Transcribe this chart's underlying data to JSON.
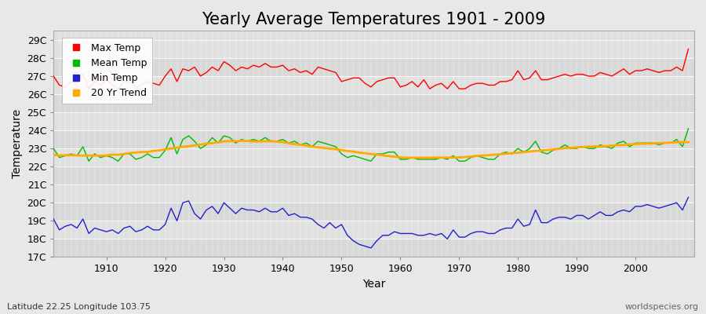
{
  "title": "Yearly Average Temperatures 1901 - 2009",
  "xlabel": "Year",
  "ylabel": "Temperature",
  "lat_lon_label": "Latitude 22.25 Longitude 103.75",
  "credit": "worldspecies.org",
  "years": [
    1901,
    1902,
    1903,
    1904,
    1905,
    1906,
    1907,
    1908,
    1909,
    1910,
    1911,
    1912,
    1913,
    1914,
    1915,
    1916,
    1917,
    1918,
    1919,
    1920,
    1921,
    1922,
    1923,
    1924,
    1925,
    1926,
    1927,
    1928,
    1929,
    1930,
    1931,
    1932,
    1933,
    1934,
    1935,
    1936,
    1937,
    1938,
    1939,
    1940,
    1941,
    1942,
    1943,
    1944,
    1945,
    1946,
    1947,
    1948,
    1949,
    1950,
    1951,
    1952,
    1953,
    1954,
    1955,
    1956,
    1957,
    1958,
    1959,
    1960,
    1961,
    1962,
    1963,
    1964,
    1965,
    1966,
    1967,
    1968,
    1969,
    1970,
    1971,
    1972,
    1973,
    1974,
    1975,
    1976,
    1977,
    1978,
    1979,
    1980,
    1981,
    1982,
    1983,
    1984,
    1985,
    1986,
    1987,
    1988,
    1989,
    1990,
    1991,
    1992,
    1993,
    1994,
    1995,
    1996,
    1997,
    1998,
    1999,
    2000,
    2001,
    2002,
    2003,
    2004,
    2005,
    2006,
    2007,
    2008,
    2009
  ],
  "max_temp": [
    27.0,
    26.5,
    26.4,
    26.7,
    26.6,
    27.1,
    26.3,
    26.7,
    26.5,
    26.8,
    26.5,
    26.3,
    26.7,
    26.7,
    26.4,
    26.5,
    26.7,
    26.6,
    26.5,
    27.0,
    27.4,
    26.7,
    27.4,
    27.3,
    27.5,
    27.0,
    27.2,
    27.5,
    27.3,
    27.8,
    27.6,
    27.3,
    27.5,
    27.4,
    27.6,
    27.5,
    27.7,
    27.5,
    27.5,
    27.6,
    27.3,
    27.4,
    27.2,
    27.3,
    27.1,
    27.5,
    27.4,
    27.3,
    27.2,
    26.7,
    26.8,
    26.9,
    26.9,
    26.6,
    26.4,
    26.7,
    26.8,
    26.9,
    26.9,
    26.4,
    26.5,
    26.7,
    26.4,
    26.8,
    26.3,
    26.5,
    26.6,
    26.3,
    26.7,
    26.3,
    26.3,
    26.5,
    26.6,
    26.6,
    26.5,
    26.5,
    26.7,
    26.7,
    26.8,
    27.3,
    26.8,
    26.9,
    27.3,
    26.8,
    26.8,
    26.9,
    27.0,
    27.1,
    27.0,
    27.1,
    27.1,
    27.0,
    27.0,
    27.2,
    27.1,
    27.0,
    27.2,
    27.4,
    27.1,
    27.3,
    27.3,
    27.4,
    27.3,
    27.2,
    27.3,
    27.3,
    27.5,
    27.3,
    28.5
  ],
  "mean_temp": [
    23.0,
    22.5,
    22.6,
    22.7,
    22.6,
    23.1,
    22.3,
    22.7,
    22.5,
    22.6,
    22.5,
    22.3,
    22.7,
    22.7,
    22.4,
    22.5,
    22.7,
    22.5,
    22.5,
    22.9,
    23.6,
    22.7,
    23.5,
    23.7,
    23.4,
    23.0,
    23.2,
    23.6,
    23.3,
    23.7,
    23.6,
    23.3,
    23.5,
    23.4,
    23.5,
    23.4,
    23.6,
    23.4,
    23.4,
    23.5,
    23.3,
    23.4,
    23.2,
    23.3,
    23.1,
    23.4,
    23.3,
    23.2,
    23.1,
    22.7,
    22.5,
    22.6,
    22.5,
    22.4,
    22.3,
    22.7,
    22.7,
    22.8,
    22.8,
    22.4,
    22.4,
    22.5,
    22.4,
    22.4,
    22.4,
    22.4,
    22.5,
    22.4,
    22.6,
    22.3,
    22.3,
    22.5,
    22.6,
    22.5,
    22.4,
    22.4,
    22.7,
    22.8,
    22.7,
    23.0,
    22.8,
    23.0,
    23.4,
    22.8,
    22.7,
    22.9,
    23.0,
    23.2,
    23.0,
    23.0,
    23.1,
    23.0,
    23.0,
    23.2,
    23.1,
    23.0,
    23.3,
    23.4,
    23.1,
    23.3,
    23.3,
    23.3,
    23.3,
    23.2,
    23.3,
    23.3,
    23.5,
    23.1,
    24.1
  ],
  "min_temp": [
    19.1,
    18.5,
    18.7,
    18.8,
    18.6,
    19.1,
    18.3,
    18.6,
    18.5,
    18.4,
    18.5,
    18.3,
    18.6,
    18.7,
    18.4,
    18.5,
    18.7,
    18.5,
    18.5,
    18.8,
    19.7,
    19.0,
    20.0,
    20.1,
    19.4,
    19.1,
    19.6,
    19.8,
    19.4,
    20.0,
    19.7,
    19.4,
    19.7,
    19.6,
    19.6,
    19.5,
    19.7,
    19.5,
    19.5,
    19.7,
    19.3,
    19.4,
    19.2,
    19.2,
    19.1,
    18.8,
    18.6,
    18.9,
    18.6,
    18.8,
    18.2,
    17.9,
    17.7,
    17.6,
    17.5,
    17.9,
    18.2,
    18.2,
    18.4,
    18.3,
    18.3,
    18.3,
    18.2,
    18.2,
    18.3,
    18.2,
    18.3,
    18.0,
    18.5,
    18.1,
    18.1,
    18.3,
    18.4,
    18.4,
    18.3,
    18.3,
    18.5,
    18.6,
    18.6,
    19.1,
    18.7,
    18.8,
    19.6,
    18.9,
    18.9,
    19.1,
    19.2,
    19.2,
    19.1,
    19.3,
    19.3,
    19.1,
    19.3,
    19.5,
    19.3,
    19.3,
    19.5,
    19.6,
    19.5,
    19.8,
    19.8,
    19.9,
    19.8,
    19.7,
    19.8,
    19.9,
    20.0,
    19.6,
    20.3
  ],
  "bg_color": "#e8e8e8",
  "plot_bg_color": "#e0e0e0",
  "band_colors": [
    "#d8d8d8",
    "#e0e0e0"
  ],
  "max_color": "#ff0000",
  "mean_color": "#00bb00",
  "min_color": "#2222cc",
  "trend_color": "#ffaa00",
  "ylim": [
    17.0,
    29.5
  ],
  "yticks": [
    17,
    18,
    19,
    20,
    21,
    22,
    23,
    24,
    25,
    26,
    27,
    28,
    29
  ],
  "ytick_labels": [
    "17C",
    "18C",
    "19C",
    "20C",
    "21C",
    "22C",
    "23C",
    "24C",
    "25C",
    "26C",
    "27C",
    "28C",
    "29C"
  ],
  "xlim": [
    1901,
    2010
  ],
  "xticks": [
    1910,
    1920,
    1930,
    1940,
    1950,
    1960,
    1970,
    1980,
    1990,
    2000
  ],
  "title_fontsize": 15,
  "axis_label_fontsize": 10,
  "tick_fontsize": 9,
  "legend_fontsize": 9,
  "linewidth": 1.0,
  "trend_linewidth": 2.0
}
